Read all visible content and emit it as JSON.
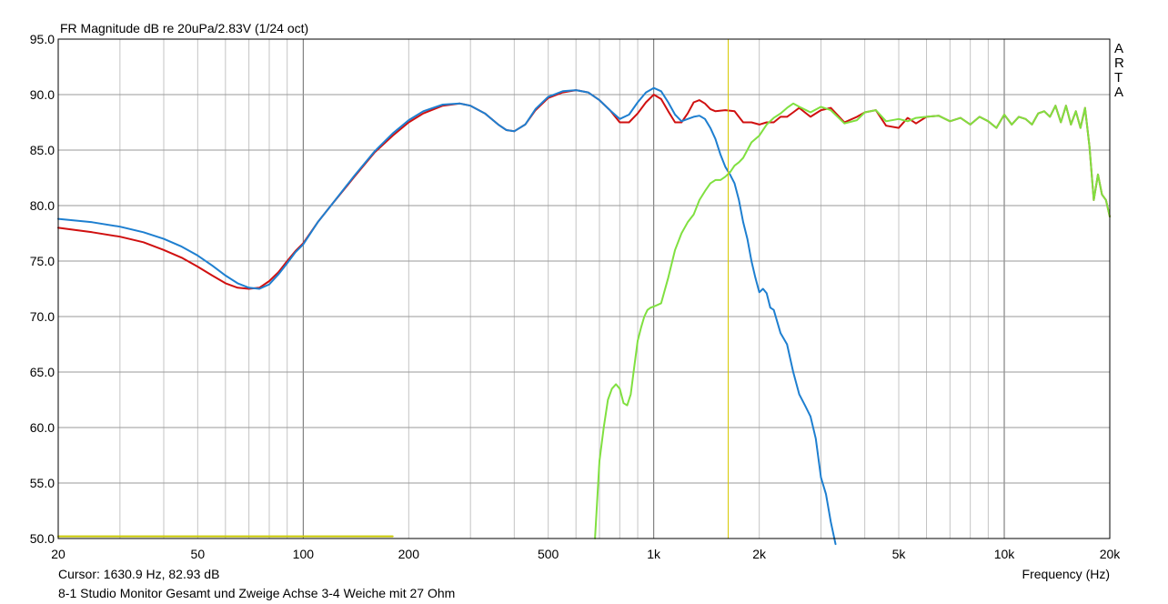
{
  "header": {
    "title": "FR Magnitude dB re 20uPa/2.83V (1/24 oct)"
  },
  "brand": {
    "letters": [
      "A",
      "R",
      "T",
      "A"
    ]
  },
  "footer": {
    "cursor": "Cursor: 1630.9 Hz, 82.93 dB",
    "description": "8-1 Studio Monitor Gesamt und Zweige Achse 3-4 Weiche mit 27 Ohm"
  },
  "chart_data": {
    "type": "line",
    "title": "FR Magnitude dB re 20uPa/2.83V (1/24 oct)",
    "xlabel": "Frequency (Hz)",
    "ylabel": "",
    "xscale": "log",
    "xlim": [
      20,
      20000
    ],
    "ylim": [
      50,
      95
    ],
    "grid": true,
    "x_ticks": [
      {
        "value": 20,
        "label": "20"
      },
      {
        "value": 50,
        "label": "50"
      },
      {
        "value": 100,
        "label": "100"
      },
      {
        "value": 200,
        "label": "200"
      },
      {
        "value": 500,
        "label": "500"
      },
      {
        "value": 1000,
        "label": "1k"
      },
      {
        "value": 2000,
        "label": "2k"
      },
      {
        "value": 5000,
        "label": "5k"
      },
      {
        "value": 10000,
        "label": "10k"
      },
      {
        "value": 20000,
        "label": "20k"
      }
    ],
    "y_ticks": [
      {
        "value": 95,
        "label": "95.0"
      },
      {
        "value": 90,
        "label": "90.0"
      },
      {
        "value": 85,
        "label": "85.0"
      },
      {
        "value": 80,
        "label": "80.0"
      },
      {
        "value": 75,
        "label": "75.0"
      },
      {
        "value": 70,
        "label": "70.0"
      },
      {
        "value": 65,
        "label": "65.0"
      },
      {
        "value": 60,
        "label": "60.0"
      },
      {
        "value": 55,
        "label": "55.0"
      },
      {
        "value": 50,
        "label": "50.0"
      }
    ],
    "cursor": {
      "x": 1630.9,
      "y": 82.93,
      "color": "#d8c800"
    },
    "series": [
      {
        "color": "#d01010",
        "x": [
          20,
          25,
          30,
          35,
          40,
          45,
          50,
          55,
          60,
          65,
          70,
          75,
          80,
          85,
          90,
          95,
          100,
          110,
          120,
          140,
          160,
          180,
          200,
          220,
          250,
          280,
          300,
          330,
          360,
          380,
          400,
          430,
          460,
          500,
          550,
          600,
          650,
          700,
          750,
          800,
          850,
          900,
          950,
          1000,
          1050,
          1100,
          1150,
          1200,
          1250,
          1300,
          1350,
          1400,
          1450,
          1500,
          1600,
          1700,
          1800,
          1900,
          2000,
          2100,
          2200,
          2300,
          2400,
          2500,
          2600,
          2800,
          3000,
          3200,
          3500,
          3800,
          4000,
          4300,
          4600,
          5000,
          5300,
          5600,
          6000,
          6500,
          7000,
          7500,
          8000,
          8500,
          9000,
          9500,
          10000,
          10500,
          11000,
          11500,
          12000,
          12500,
          13000,
          13500,
          14000,
          14500,
          15000,
          15500,
          16000,
          16500,
          17000,
          17500,
          18000,
          18500,
          19000,
          19500,
          20000
        ],
        "y": [
          78.0,
          77.6,
          77.2,
          76.7,
          76.0,
          75.3,
          74.5,
          73.7,
          73.0,
          72.6,
          72.5,
          72.6,
          73.2,
          74.0,
          75.0,
          75.9,
          76.6,
          78.5,
          80.0,
          82.6,
          84.8,
          86.3,
          87.5,
          88.3,
          89.0,
          89.2,
          89.0,
          88.3,
          87.3,
          86.8,
          86.7,
          87.3,
          88.6,
          89.7,
          90.2,
          90.4,
          90.2,
          89.5,
          88.6,
          87.5,
          87.5,
          88.3,
          89.3,
          90.0,
          89.6,
          88.5,
          87.5,
          87.5,
          88.3,
          89.3,
          89.5,
          89.2,
          88.7,
          88.5,
          88.6,
          88.5,
          87.5,
          87.5,
          87.3,
          87.5,
          87.5,
          88.0,
          88.0,
          88.4,
          88.8,
          88.0,
          88.6,
          88.8,
          87.5,
          88.0,
          88.4,
          88.6,
          87.2,
          87.0,
          87.9,
          87.4,
          88.0,
          88.1,
          87.6,
          87.9,
          87.3,
          88.0,
          87.6,
          87.0,
          88.2,
          87.3,
          88.0,
          87.8,
          87.3,
          88.3,
          88.5,
          88.0,
          89.0,
          87.5,
          89.0,
          87.3,
          88.5,
          87.0,
          88.8,
          85.3,
          80.5,
          82.8,
          81.0,
          80.5,
          79.0
        ]
      },
      {
        "color": "#1e7fd0",
        "x": [
          20,
          25,
          30,
          35,
          40,
          45,
          50,
          55,
          60,
          65,
          70,
          75,
          80,
          85,
          90,
          95,
          100,
          110,
          120,
          140,
          160,
          180,
          200,
          220,
          250,
          280,
          300,
          330,
          360,
          380,
          400,
          430,
          460,
          500,
          550,
          600,
          650,
          700,
          750,
          800,
          850,
          900,
          950,
          1000,
          1050,
          1100,
          1150,
          1200,
          1250,
          1300,
          1350,
          1400,
          1450,
          1500,
          1550,
          1600,
          1650,
          1700,
          1750,
          1800,
          1850,
          1900,
          1950,
          2000,
          2050,
          2100,
          2150,
          2200,
          2300,
          2400,
          2500,
          2600,
          2700,
          2800,
          2900,
          3000,
          3100,
          3200,
          3300
        ],
        "y": [
          78.8,
          78.5,
          78.1,
          77.6,
          77.0,
          76.3,
          75.5,
          74.6,
          73.7,
          73.0,
          72.6,
          72.5,
          72.9,
          73.8,
          74.8,
          75.8,
          76.5,
          78.5,
          80.0,
          82.7,
          84.9,
          86.5,
          87.7,
          88.5,
          89.1,
          89.2,
          89.0,
          88.3,
          87.3,
          86.8,
          86.7,
          87.3,
          88.7,
          89.8,
          90.3,
          90.4,
          90.2,
          89.5,
          88.6,
          87.8,
          88.2,
          89.3,
          90.2,
          90.6,
          90.3,
          89.3,
          88.2,
          87.6,
          87.8,
          88.0,
          88.1,
          87.8,
          87.0,
          86.0,
          84.6,
          83.5,
          82.8,
          82.0,
          80.5,
          78.5,
          77.0,
          75.0,
          73.5,
          72.2,
          72.5,
          72.1,
          70.8,
          70.6,
          68.5,
          67.5,
          65.0,
          63.0,
          62.0,
          61.0,
          59.0,
          55.5,
          54.0,
          51.5,
          49.5
        ]
      },
      {
        "color": "#80e040",
        "x": [
          680,
          700,
          720,
          740,
          760,
          780,
          800,
          820,
          840,
          860,
          880,
          900,
          920,
          940,
          960,
          980,
          1000,
          1050,
          1100,
          1150,
          1200,
          1250,
          1300,
          1350,
          1400,
          1450,
          1500,
          1550,
          1600,
          1650,
          1700,
          1750,
          1800,
          1900,
          2000,
          2100,
          2200,
          2300,
          2400,
          2500,
          2600,
          2800,
          3000,
          3200,
          3500,
          3800,
          4000,
          4300,
          4600,
          5000,
          5300,
          5600,
          6000,
          6500,
          7000,
          7500,
          8000,
          8500,
          9000,
          9500,
          10000,
          10500,
          11000,
          11500,
          12000,
          12500,
          13000,
          13500,
          14000,
          14500,
          15000,
          15500,
          16000,
          16500,
          17000,
          17500,
          18000,
          18500,
          19000,
          19500,
          20000
        ],
        "y": [
          50.0,
          57.0,
          60.0,
          62.5,
          63.5,
          63.9,
          63.5,
          62.2,
          62.0,
          63.0,
          65.5,
          67.8,
          69.0,
          70.0,
          70.6,
          70.8,
          70.9,
          71.2,
          73.5,
          76.0,
          77.5,
          78.5,
          79.2,
          80.5,
          81.3,
          82.0,
          82.3,
          82.3,
          82.6,
          83.0,
          83.6,
          83.9,
          84.3,
          85.7,
          86.3,
          87.3,
          87.9,
          88.3,
          88.8,
          89.2,
          88.9,
          88.4,
          88.9,
          88.6,
          87.4,
          87.7,
          88.4,
          88.6,
          87.6,
          87.8,
          87.6,
          87.9,
          88.0,
          88.1,
          87.6,
          87.9,
          87.3,
          88.0,
          87.6,
          87.0,
          88.2,
          87.3,
          88.0,
          87.8,
          87.3,
          88.3,
          88.5,
          88.0,
          89.0,
          87.5,
          89.0,
          87.3,
          88.5,
          87.0,
          88.8,
          85.3,
          80.5,
          82.8,
          81.0,
          80.5,
          79.0
        ]
      },
      {
        "color": "#c8c800",
        "x": [
          20,
          180
        ],
        "y": [
          50.2,
          50.2
        ]
      }
    ]
  }
}
